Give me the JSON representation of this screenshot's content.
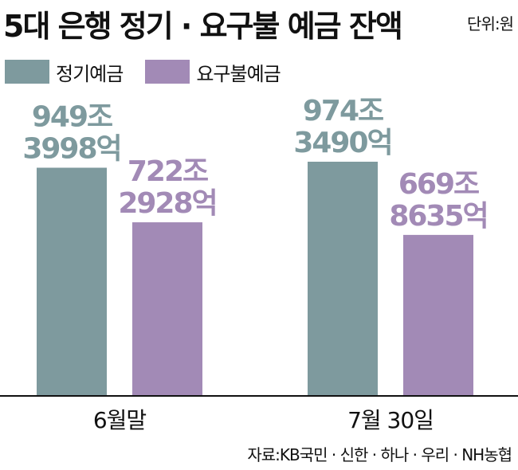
{
  "title": "5대 은행 정기 · 요구불 예금 잔액",
  "unit": "단위:원",
  "source": "자료:KB국민 · 신한 · 하나 · 우리 · NH농협",
  "colors": {
    "deposit_time": "#7E9A9E",
    "deposit_demand": "#A28AB6",
    "axis": "#111111"
  },
  "chart_data": {
    "type": "bar",
    "categories": [
      "6월말",
      "7월 30일"
    ],
    "series": [
      {
        "name": "정기예금",
        "values": [
          949.3998,
          974.349
        ],
        "labels": [
          "949조\n3998억",
          "974조\n3490억"
        ]
      },
      {
        "name": "요구불예금",
        "values": [
          722.2928,
          669.8635
        ],
        "labels": [
          "722조\n2928억",
          "669조\n8635억"
        ]
      }
    ],
    "ylim": [
      0,
      1150
    ],
    "grid": false,
    "legend": "top-left"
  }
}
